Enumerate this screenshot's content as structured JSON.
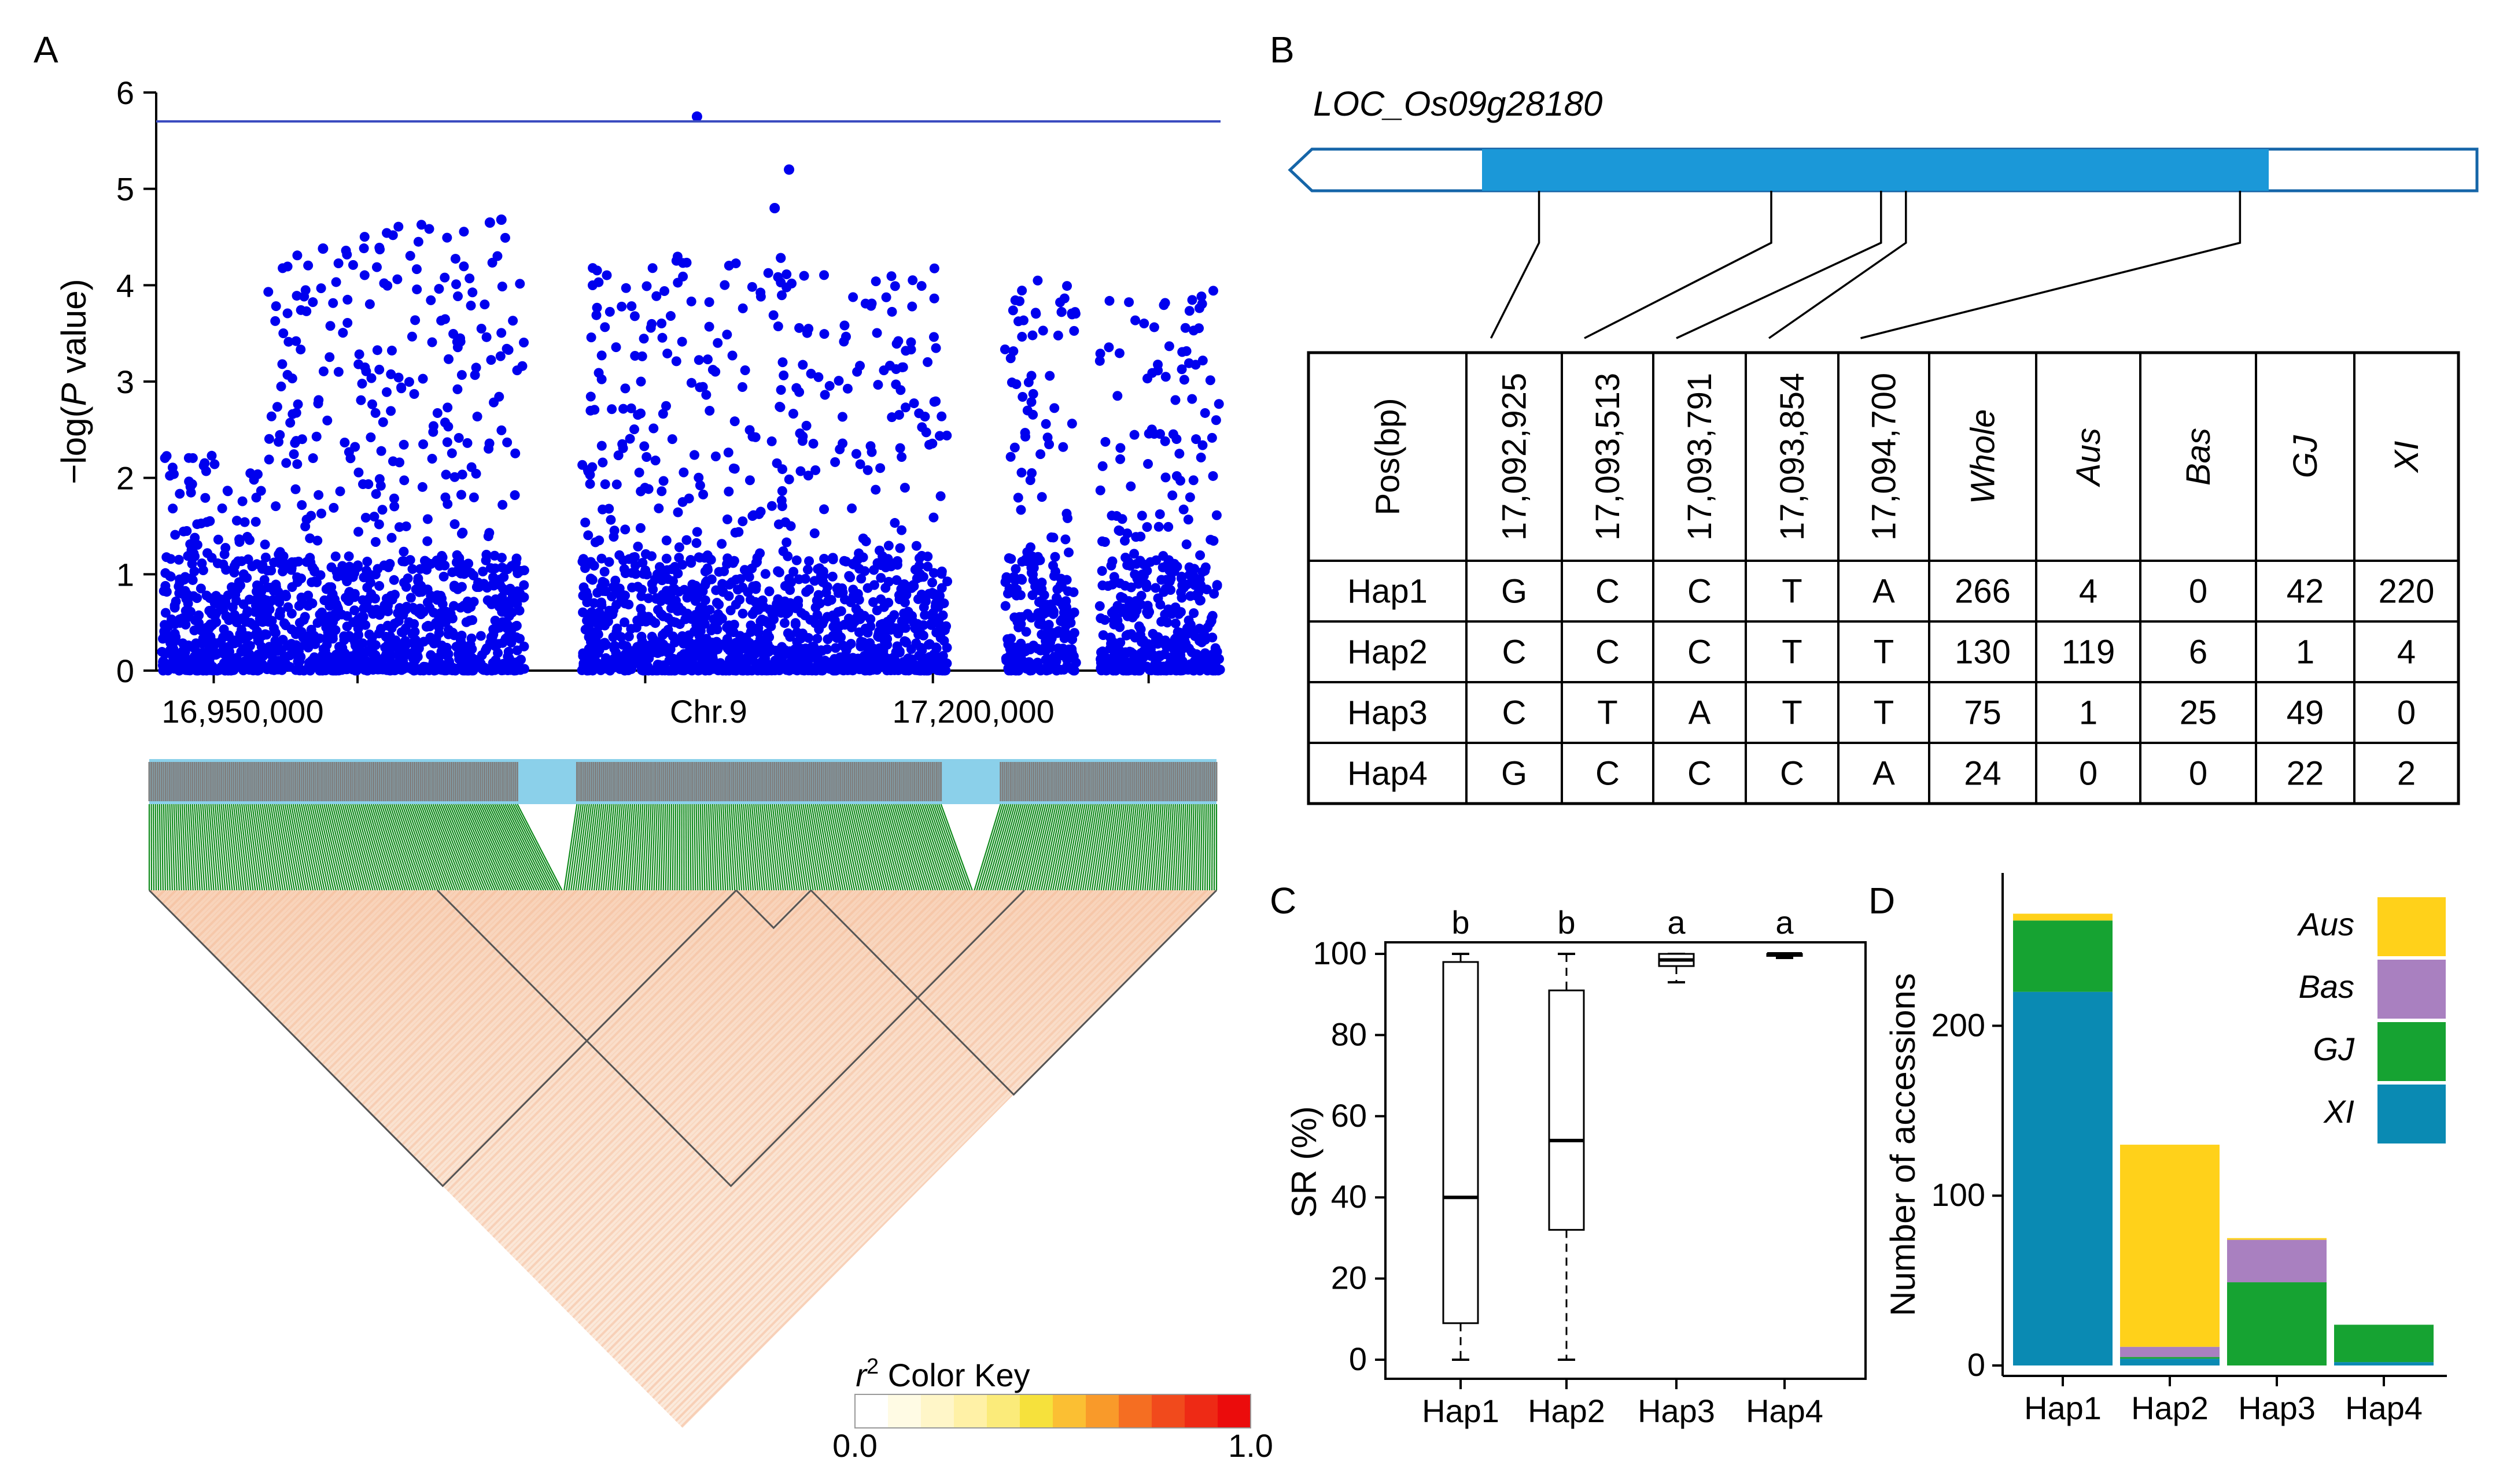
{
  "panels": {
    "A": "A",
    "B": "B",
    "C": "C",
    "D": "D"
  },
  "colors": {
    "point": "#0000ee",
    "threshold": "#3b4cc0",
    "gene_cds": "#1b98d8",
    "gene_border": "#1565a8",
    "marker_bar": "#8bd0ea",
    "marker_tick": "#7f7f7f",
    "ld_lines": "#0e8a1a",
    "aus": "#ffd11a",
    "bas": "#a980c0",
    "gj": "#16a332",
    "xi": "#0a8ab3"
  },
  "chart_data": [
    {
      "id": "A-manhattan",
      "type": "scatter",
      "title": "",
      "ylabel": "-log(P value)",
      "ylabel_prefix": "−log(",
      "ylabel_italic": "P",
      "ylabel_suffix": " value)",
      "ylim": [
        0,
        6
      ],
      "yticks": [
        0,
        1,
        2,
        3,
        4,
        5,
        6
      ],
      "xlim": [
        16930000,
        17300000
      ],
      "xtick_labels": [
        "16,950,000",
        "Chr.9",
        "17,200,000"
      ],
      "threshold": 5.7,
      "highlights": [
        {
          "x": 17118000,
          "y": 5.75
        },
        {
          "x": 17150000,
          "y": 5.2
        },
        {
          "x": 17145000,
          "y": 4.8
        },
        {
          "x": 17050000,
          "y": 4.68
        },
        {
          "x": 16988000,
          "y": 4.38
        },
        {
          "x": 17046000,
          "y": 4.65
        }
      ],
      "clusters": [
        {
          "x0": 16932000,
          "x1": 16968000,
          "ymax": 2.3
        },
        {
          "x0": 16968000,
          "x1": 17000000,
          "ymax": 4.38
        },
        {
          "x0": 17000000,
          "x1": 17058000,
          "ymax": 4.65
        },
        {
          "x0": 17078000,
          "x1": 17205000,
          "ymax": 4.3
        },
        {
          "x0": 17225000,
          "x1": 17250000,
          "ymax": 4.05
        },
        {
          "x0": 17258000,
          "x1": 17300000,
          "ymax": 3.95
        }
      ],
      "gaps": [
        [
          17058000,
          17078000
        ],
        [
          17205000,
          17225000
        ]
      ]
    },
    {
      "id": "A-ld",
      "type": "heatmap",
      "color_key_label_italic": "r",
      "color_key_label_sup": "2",
      "color_key_label": " Color Key",
      "color_key_min": "0.0",
      "color_key_max": "1.0",
      "color_key_colors": [
        "#ffffff",
        "#fffbe4",
        "#fff6c8",
        "#fff1a6",
        "#fbeb7a",
        "#f6e13c",
        "#fbbf33",
        "#f99a2a",
        "#f56e22",
        "#f14a1c",
        "#ee2a15",
        "#eb0c0c"
      ],
      "ld_blocks": [
        [
          0.0,
          0.55
        ],
        [
          0.55,
          0.62
        ],
        [
          0.27,
          0.82
        ],
        [
          0.62,
          1.0
        ]
      ]
    },
    {
      "id": "B-haplotype-table",
      "type": "table",
      "gene": "LOC_Os09g28180",
      "variant_positions": [
        17092925,
        17093513,
        17093791,
        17093854,
        17094700
      ],
      "columns": [
        "Pos(bp)",
        "17,092,925",
        "17,093,513",
        "17,093,791",
        "17,093,854",
        "17,094,700",
        "Whole",
        "Aus",
        "Bas",
        "GJ",
        "XI"
      ],
      "italic_columns": [
        "Whole",
        "Aus",
        "Bas",
        "GJ",
        "XI"
      ],
      "rows": [
        [
          "Hap1",
          "G",
          "C",
          "C",
          "T",
          "A",
          "266",
          "4",
          "0",
          "42",
          "220"
        ],
        [
          "Hap2",
          "C",
          "C",
          "C",
          "T",
          "T",
          "130",
          "119",
          "6",
          "1",
          "4"
        ],
        [
          "Hap3",
          "C",
          "T",
          "A",
          "T",
          "T",
          "75",
          "1",
          "25",
          "49",
          "0"
        ],
        [
          "Hap4",
          "G",
          "C",
          "C",
          "C",
          "A",
          "24",
          "0",
          "0",
          "22",
          "2"
        ]
      ]
    },
    {
      "id": "C-boxplot",
      "type": "bar",
      "subtype": "boxplot",
      "ylabel": "SR (%)",
      "ylim": [
        0,
        100
      ],
      "yticks": [
        0,
        20,
        40,
        60,
        80,
        100
      ],
      "categories": [
        "Hap1",
        "Hap2",
        "Hap3",
        "Hap4"
      ],
      "significance": [
        "b",
        "b",
        "a",
        "a"
      ],
      "boxes": [
        {
          "min": 0,
          "q1": 9,
          "median": 40,
          "q3": 98,
          "max": 100
        },
        {
          "min": 0,
          "q1": 32,
          "median": 54,
          "q3": 91,
          "max": 100
        },
        {
          "min": 93,
          "q1": 97,
          "median": 98.5,
          "q3": 100,
          "max": 100
        },
        {
          "min": 99,
          "q1": 99.5,
          "median": 100,
          "q3": 100,
          "max": 100
        }
      ]
    },
    {
      "id": "D-stacked",
      "type": "bar",
      "subtype": "stacked",
      "ylabel": "Number of accessions",
      "ylim": [
        0,
        290
      ],
      "yticks": [
        0,
        100,
        200
      ],
      "categories": [
        "Hap1",
        "Hap2",
        "Hap3",
        "Hap4"
      ],
      "legend_position": "top-right",
      "series": [
        {
          "name": "XI",
          "color": "#0a8ab3",
          "values": [
            220,
            4,
            0,
            2
          ]
        },
        {
          "name": "GJ",
          "color": "#16a332",
          "values": [
            42,
            1,
            49,
            22
          ]
        },
        {
          "name": "Bas",
          "color": "#a980c0",
          "values": [
            0,
            6,
            25,
            0
          ]
        },
        {
          "name": "Aus",
          "color": "#ffd11a",
          "values": [
            4,
            119,
            1,
            0
          ]
        }
      ],
      "legend_order": [
        "Aus",
        "Bas",
        "GJ",
        "XI"
      ]
    }
  ]
}
